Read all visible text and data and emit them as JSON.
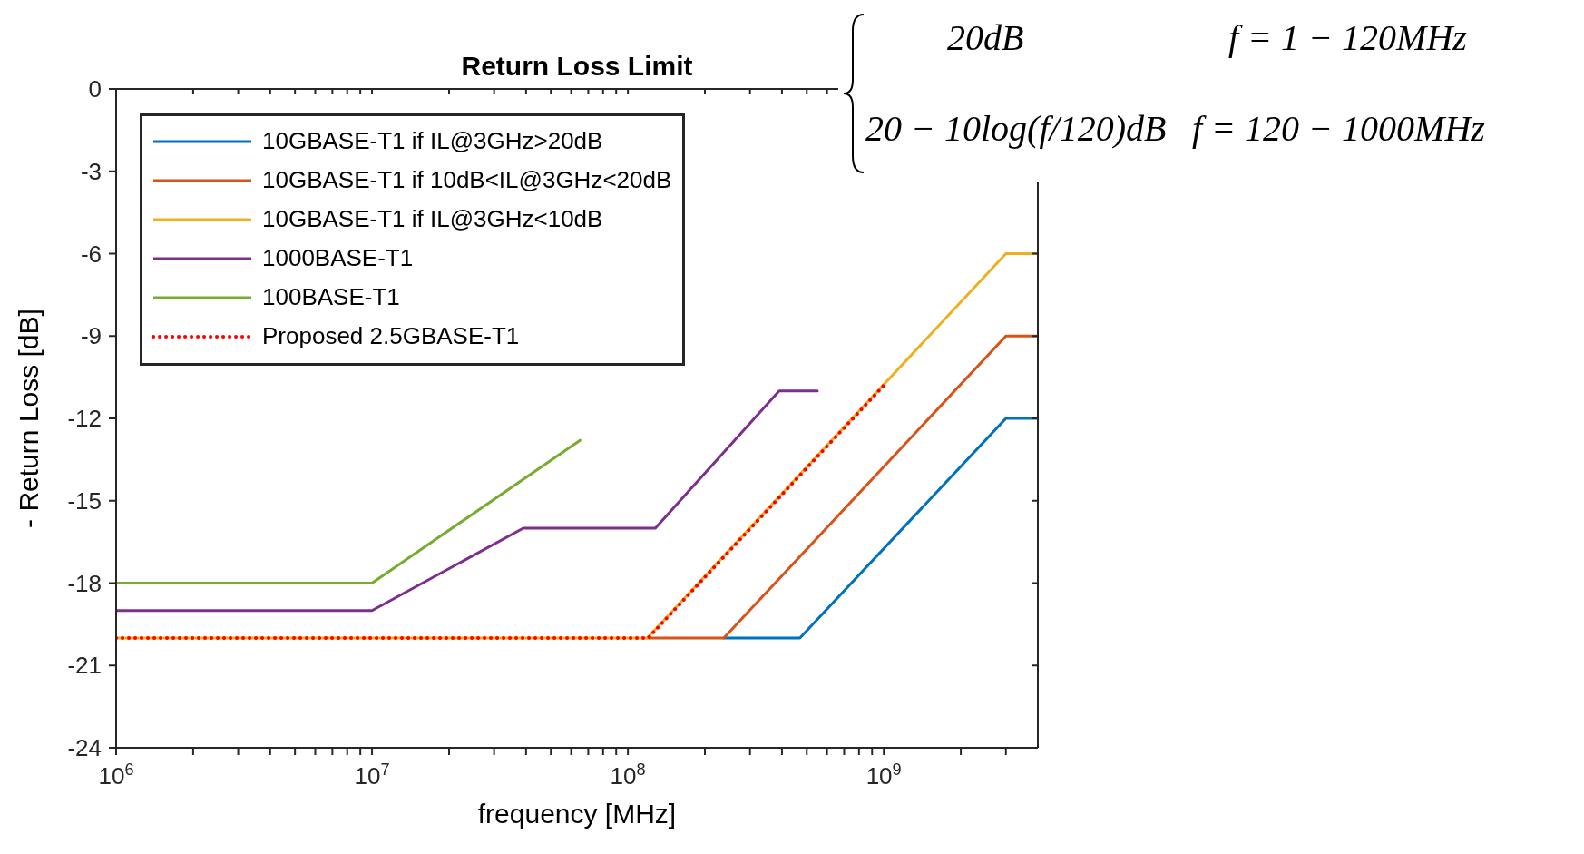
{
  "chart_data": {
    "type": "line",
    "title": "Return Loss Limit",
    "xlabel": "frequency [MHz]",
    "ylabel": "- Return Loss [dB]",
    "log": "x",
    "grid": false,
    "legend": "top left",
    "line_style": "solid",
    "xlim": [
      1000000,
      4000000000
    ],
    "ylim": [
      -24,
      0
    ],
    "xticks": [
      {
        "value": 1000000,
        "label": "10$^{6}$"
      },
      {
        "value": 2000000,
        "label": null
      },
      {
        "value": 3000000,
        "label": null
      },
      {
        "value": 4000000,
        "label": null
      },
      {
        "value": 5000000,
        "label": null
      },
      {
        "value": 6000000,
        "label": null
      },
      {
        "value": 7000000,
        "label": null
      },
      {
        "value": 8000000,
        "label": null
      },
      {
        "value": 9000000,
        "label": null
      },
      {
        "value": 10000000,
        "label": "10$^{7}$"
      },
      {
        "value": 20000000,
        "label": null
      },
      {
        "value": 30000000,
        "label": null
      },
      {
        "value": 40000000,
        "label": null
      },
      {
        "value": 50000000,
        "label": null
      },
      {
        "value": 60000000,
        "label": null
      },
      {
        "value": 70000000,
        "label": null
      },
      {
        "value": 80000000,
        "label": null
      },
      {
        "value": 90000000,
        "label": null
      },
      {
        "value": 100000000,
        "label": "10$^{8}$"
      },
      {
        "value": 200000000,
        "label": null
      },
      {
        "value": 300000000,
        "label": null
      },
      {
        "value": 400000000,
        "label": null
      },
      {
        "value": 500000000,
        "label": null
      },
      {
        "value": 600000000,
        "label": null
      },
      {
        "value": 700000000,
        "label": null
      },
      {
        "value": 800000000,
        "label": null
      },
      {
        "value": 900000000,
        "label": null
      },
      {
        "value": 1000000000,
        "label": "10$^{9}$"
      },
      {
        "value": 2000000000,
        "label": null
      },
      {
        "value": 3000000000,
        "label": null
      }
    ],
    "yticks": [
      0,
      -3,
      -6,
      -9,
      -12,
      -15,
      -18,
      -21,
      -24
    ],
    "series": [
      {
        "name": "10GBASE-T1 if IL@3GHz>20dB",
        "color": "#0072bd",
        "x": [
          237000000,
          470000000,
          3000000000,
          4000000000
        ],
        "values": [
          -20,
          -20,
          -12,
          -12
        ]
      },
      {
        "name": "10GBASE-T1 if 10dB<IL@3GHz<20dB",
        "color": "#d95319",
        "x": [
          119000000,
          237000000,
          3000000000,
          4000000000
        ],
        "values": [
          -20,
          -20,
          -9,
          -9
        ]
      },
      {
        "name": "10GBASE-T1 if IL@3GHz<10dB",
        "color": "#edb120",
        "x": [
          1000000,
          119000000,
          3000000000,
          4000000000
        ],
        "values": [
          -20,
          -20,
          -6,
          -6
        ]
      },
      {
        "name": "1000BASE-T1",
        "color": "#7e2f8e",
        "x": [
          1000000,
          10000000,
          39000000,
          128000000,
          390000000,
          550000000
        ],
        "values": [
          -19,
          -19,
          -16,
          -16,
          -11,
          -11
        ]
      },
      {
        "name": "100BASE-T1",
        "color": "#77ac30",
        "x": [
          1000000,
          10000000,
          65000000
        ],
        "values": [
          -18,
          -18,
          -12.8
        ]
      },
      {
        "name": "Proposed 2.5GBASE-T1",
        "color": "#ff0000",
        "line_style": "dotted",
        "x": [
          1000000,
          120000000,
          1000000000
        ],
        "values": [
          -20,
          -20,
          -10.8
        ]
      }
    ],
    "annotations": [
      "20dB",
      "f = 1 − 120MHz",
      "20 − 10log(f/120)dB",
      "f = 120 − 1000MHz"
    ]
  }
}
